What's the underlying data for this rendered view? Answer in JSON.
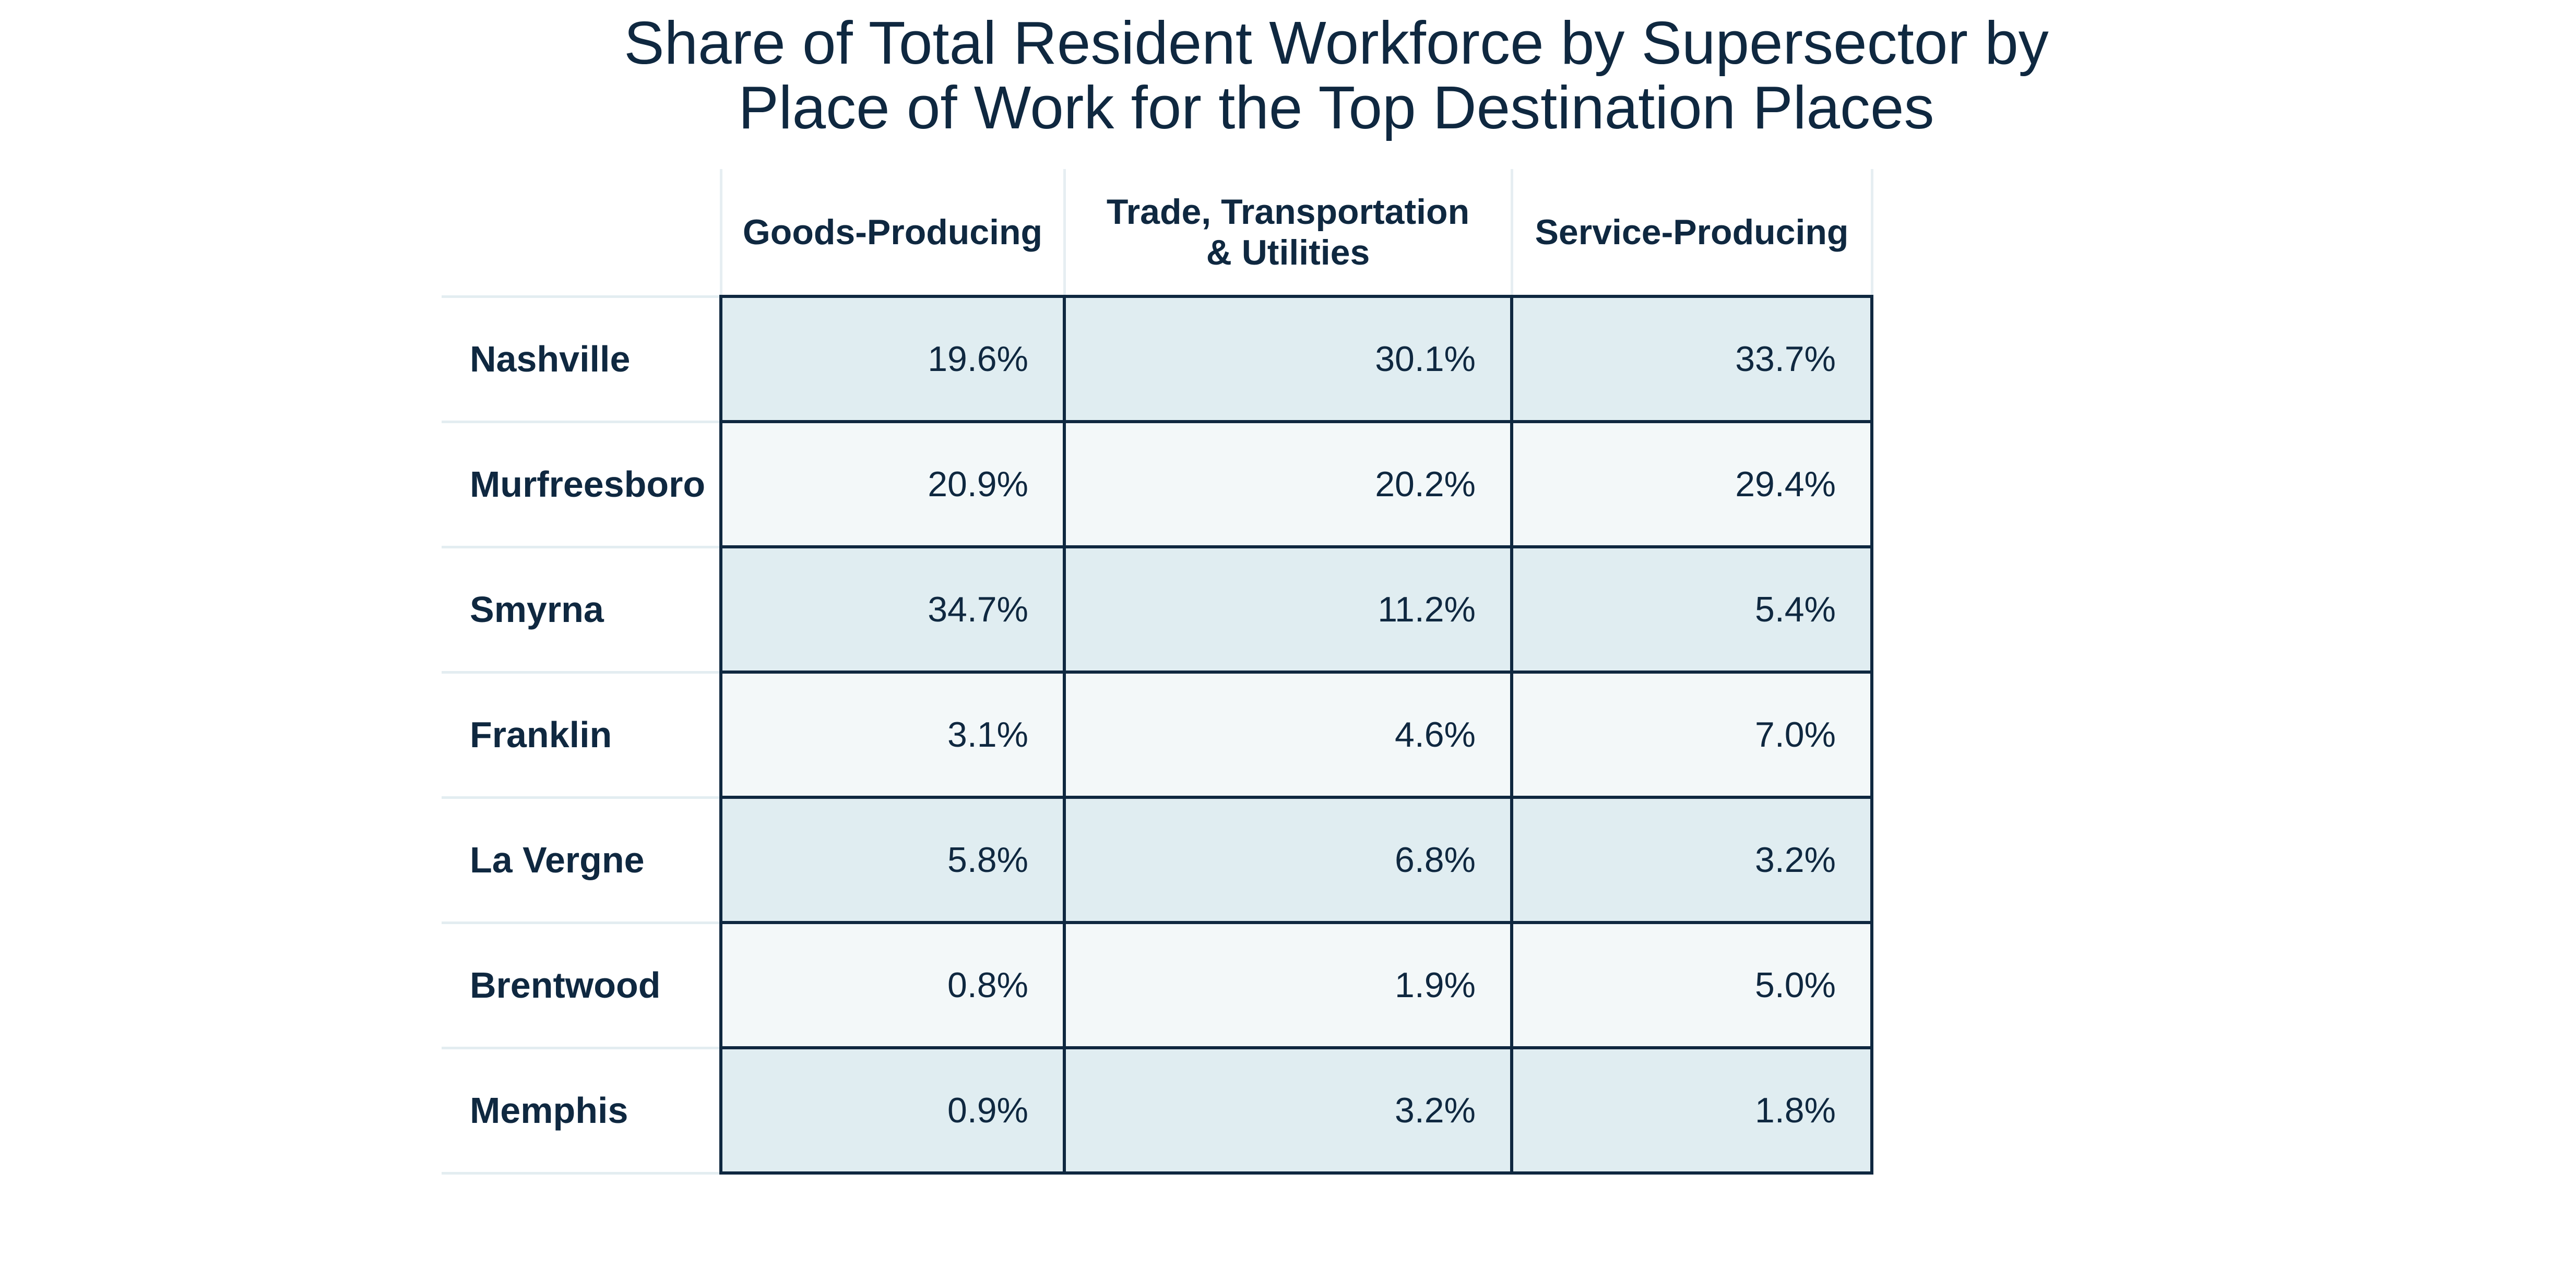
{
  "chart_data": {
    "type": "table",
    "title": "Share of Total Resident Workforce by Supersector by",
    "title_line2": "Place of Work for the Top Destination Places",
    "columns": [
      "Goods-Producing",
      "Trade, Transportation",
      "& Utilities",
      "Service-Producing"
    ],
    "column_headers": {
      "goods": "Goods-Producing",
      "trade_line1": "Trade, Transportation",
      "trade_line2": "& Utilities",
      "service": "Service-Producing"
    },
    "rows": [
      {
        "place": "Nashville",
        "goods": "19.6%",
        "trade": "30.1%",
        "service": "33.7%"
      },
      {
        "place": "Murfreesboro",
        "goods": "20.9%",
        "trade": "20.2%",
        "service": "29.4%"
      },
      {
        "place": "Smyrna",
        "goods": "34.7%",
        "trade": "11.2%",
        "service": "5.4%"
      },
      {
        "place": "Franklin",
        "goods": "3.1%",
        "trade": "4.6%",
        "service": "7.0%"
      },
      {
        "place": "La Vergne",
        "goods": "5.8%",
        "trade": "6.8%",
        "service": "3.2%"
      },
      {
        "place": "Brentwood",
        "goods": "0.8%",
        "trade": "1.9%",
        "service": "5.0%"
      },
      {
        "place": "Memphis",
        "goods": "0.9%",
        "trade": "3.2%",
        "service": "1.8%"
      }
    ]
  },
  "colors": {
    "text": "#0f2840",
    "shade_row": "#e0edf1",
    "light_row": "#f3f8f9",
    "border": "#0f2840"
  }
}
